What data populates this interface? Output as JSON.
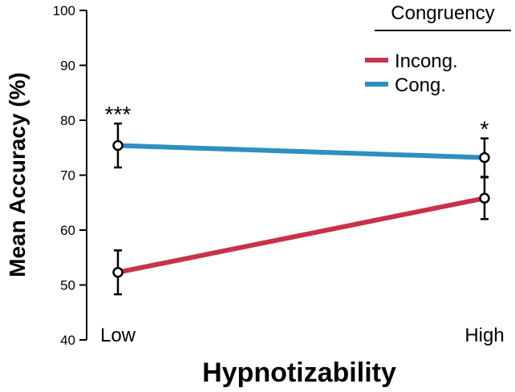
{
  "chart_data": {
    "type": "line",
    "categories": [
      "Low",
      "High"
    ],
    "xlabel": "Hypnotizability",
    "ylabel": "Mean Accuracy (%)",
    "ylim": [
      40,
      100
    ],
    "yticks": [
      40,
      50,
      60,
      70,
      80,
      90,
      100
    ],
    "legend": {
      "title": "Congruency",
      "position": "top-right"
    },
    "series": [
      {
        "name": "Incong.",
        "color": "#c8324a",
        "values": [
          52.3,
          65.8
        ],
        "errors": [
          4.0,
          3.8
        ]
      },
      {
        "name": "Cong.",
        "color": "#2e8fc0",
        "values": [
          75.4,
          73.2
        ],
        "errors": [
          4.0,
          3.5
        ]
      }
    ],
    "annotations": [
      {
        "category": "Low",
        "text": "***"
      },
      {
        "category": "High",
        "text": "*"
      }
    ],
    "grid": false
  }
}
